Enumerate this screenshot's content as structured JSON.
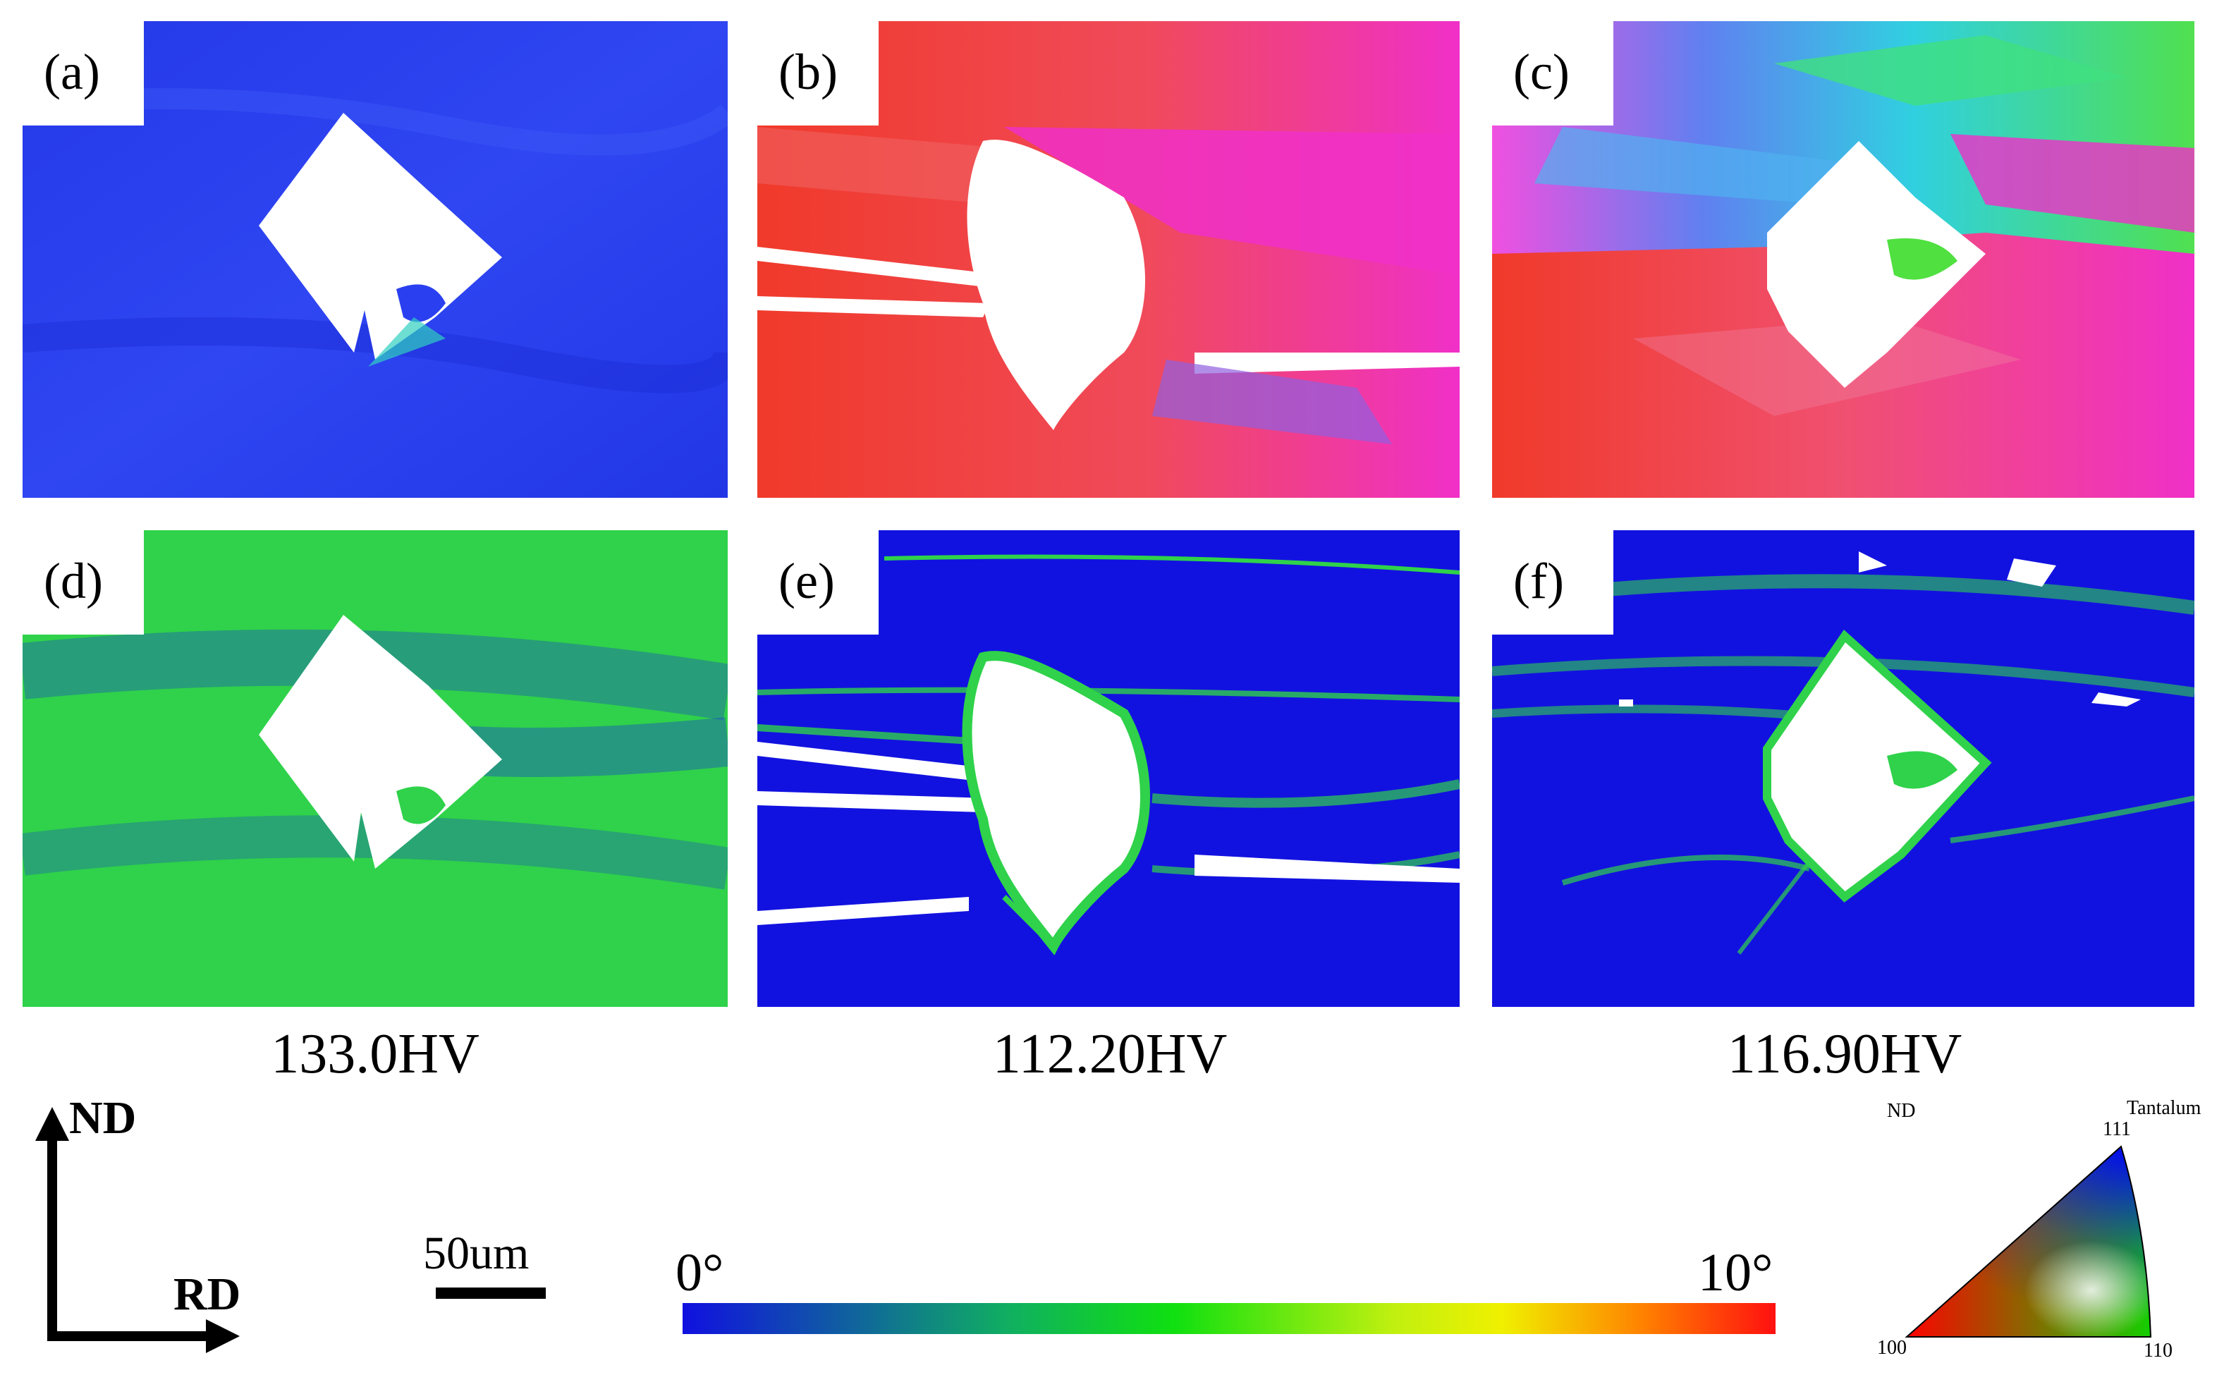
{
  "panels": [
    {
      "id": "a",
      "label": "(a)",
      "map": "IPF",
      "color_scheme": "blue"
    },
    {
      "id": "b",
      "label": "(b)",
      "map": "IPF",
      "color_scheme": "red"
    },
    {
      "id": "c",
      "label": "(c)",
      "map": "IPF",
      "color_scheme": "mixed"
    },
    {
      "id": "d",
      "label": "(d)",
      "map": "KAM",
      "color_scheme": "green"
    },
    {
      "id": "e",
      "label": "(e)",
      "map": "KAM",
      "color_scheme": "blue"
    },
    {
      "id": "f",
      "label": "(f)",
      "map": "KAM",
      "color_scheme": "blue"
    }
  ],
  "hardness": [
    "133.0HV",
    "112.20HV",
    "116.90HV"
  ],
  "axes": {
    "vertical": "ND",
    "horizontal": "RD"
  },
  "scale_bar": {
    "label": "50um"
  },
  "colorbar": {
    "min_label": "0°",
    "max_label": "10°",
    "colors": [
      "#1010e0",
      "#10c030",
      "#f0f000",
      "#ff1010"
    ]
  },
  "ipf_key": {
    "material": "Tantalum",
    "direction": "ND",
    "corner_100": "100",
    "corner_110": "110",
    "corner_111": "111"
  },
  "colors": {
    "ipf_blue": "#2a3cf0",
    "ipf_red": "#f03a2a",
    "ipf_pink": "#f030c8",
    "kam_blue": "#1212e0",
    "kam_green": "#2fd24a"
  }
}
